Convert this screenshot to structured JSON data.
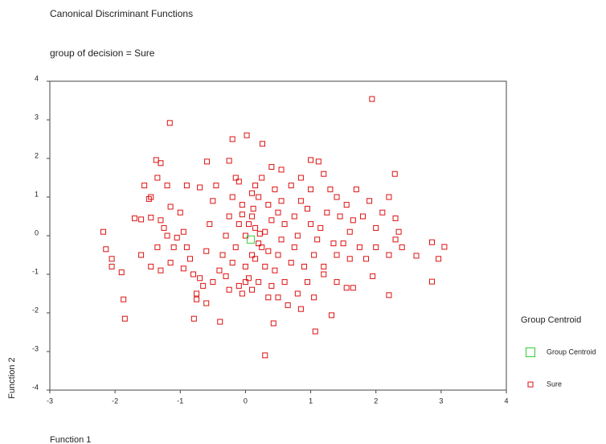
{
  "chart_data": {
    "type": "scatter",
    "title": "Canonical Discriminant Functions",
    "subtitle": "group of decision = Sure",
    "x_label": "Function 1",
    "y_label": "Function 2",
    "legend_title": "Group Centroid",
    "xlim": [
      -3,
      4
    ],
    "ylim": [
      -4,
      4
    ],
    "xticks": [
      -3,
      -2,
      -1,
      0,
      1,
      2,
      3,
      4
    ],
    "yticks": [
      -4,
      -3,
      -2,
      -1,
      0,
      1,
      2,
      3,
      4
    ],
    "grid": false,
    "series": [
      {
        "name": "Group Centroid",
        "color": "#33cc33",
        "x": [
          0.08
        ],
        "y": [
          -0.1
        ]
      },
      {
        "name": "Sure",
        "color": "#dd1111",
        "x": [
          1.94,
          -1.16,
          0.02,
          0.26,
          -0.2,
          -0.25,
          -0.59,
          -1.37,
          -1.3,
          2.29,
          1.0,
          0.55,
          1.12,
          0.4,
          -2.18,
          -2.14,
          -2.05,
          -2.05,
          -1.9,
          -1.87,
          -1.85,
          3.05,
          2.96,
          2.86,
          2.62,
          2.86,
          2.2,
          0.3,
          1.07,
          -0.39,
          0.43,
          -0.79,
          1.32,
          -1.7,
          -1.6,
          -1.45,
          -1.48,
          -1.45,
          -1.55,
          -1.35,
          -1.2,
          -1.15,
          -1.3,
          -1.25,
          -1.35,
          -1.6,
          -1.45,
          -1.3,
          -1.15,
          -1.1,
          -1.0,
          -0.95,
          -0.9,
          -0.85,
          -0.8,
          -0.75,
          -0.7,
          -0.65,
          -0.6,
          -0.55,
          -0.5,
          -0.45,
          -0.7,
          -0.9,
          -0.6,
          -0.75,
          -0.5,
          -0.4,
          -0.35,
          -0.3,
          -0.25,
          -0.2,
          -0.15,
          -0.1,
          -0.05,
          -0.1,
          -0.15,
          -0.2,
          -0.1,
          -0.3,
          -1.05,
          -1.2,
          -0.95,
          0.0,
          0.05,
          0.1,
          0.15,
          0.2,
          0.1,
          0.0,
          0.05,
          -0.05,
          0.1,
          0.2,
          0.3,
          0.35,
          0.3,
          0.4,
          0.35,
          0.2,
          0.15,
          0.1,
          0.25,
          0.45,
          0.55,
          0.5,
          0.6,
          0.55,
          0.5,
          0.45,
          0.4,
          0.35,
          0.5,
          0.6,
          0.7,
          0.75,
          0.8,
          0.75,
          0.85,
          0.7,
          0.85,
          1.0,
          0.95,
          1.0,
          1.1,
          1.05,
          0.9,
          0.8,
          0.95,
          0.65,
          0.85,
          1.2,
          1.15,
          1.25,
          1.3,
          1.2,
          1.4,
          1.45,
          1.35,
          1.4,
          1.5,
          1.6,
          1.65,
          1.55,
          1.7,
          1.8,
          1.9,
          1.75,
          1.6,
          1.65,
          1.55,
          1.85,
          2.0,
          2.0,
          2.1,
          2.2,
          2.3,
          2.3,
          2.2,
          2.4,
          2.35,
          1.95,
          1.2,
          1.05,
          1.4,
          -0.25,
          0.0,
          0.25,
          0.15,
          -0.05,
          0.12,
          0.22
        ],
        "y": [
          3.54,
          2.92,
          2.6,
          2.38,
          2.5,
          1.94,
          1.92,
          1.96,
          1.88,
          1.6,
          1.96,
          1.71,
          1.92,
          1.78,
          0.1,
          -0.35,
          -0.6,
          -0.8,
          -0.95,
          -1.65,
          -2.15,
          -0.29,
          -0.6,
          -0.17,
          -0.52,
          -1.19,
          -1.54,
          -3.1,
          -2.48,
          -2.23,
          -2.27,
          -2.15,
          -2.06,
          0.45,
          0.42,
          0.47,
          0.95,
          1.0,
          1.3,
          1.5,
          1.3,
          0.75,
          0.4,
          0.2,
          -0.3,
          -0.5,
          -0.8,
          -0.9,
          -0.7,
          -0.3,
          0.6,
          0.1,
          -0.3,
          -0.6,
          -1.0,
          -1.5,
          -1.1,
          -1.3,
          -0.4,
          0.3,
          0.9,
          1.3,
          1.25,
          1.3,
          -1.75,
          -1.65,
          -1.2,
          -0.9,
          -0.5,
          0.0,
          0.5,
          1.0,
          1.5,
          1.4,
          0.8,
          0.3,
          -0.3,
          -0.7,
          -1.3,
          -1.05,
          -0.05,
          0.0,
          -0.85,
          0.0,
          0.3,
          0.5,
          0.2,
          -0.2,
          -0.5,
          -0.8,
          -1.1,
          -1.5,
          -1.4,
          -1.2,
          -0.8,
          -0.4,
          0.1,
          0.4,
          0.8,
          1.0,
          1.3,
          1.1,
          1.5,
          1.2,
          0.9,
          0.6,
          0.3,
          -0.1,
          -0.5,
          -0.9,
          -1.3,
          -1.6,
          -1.6,
          -1.2,
          -0.7,
          -0.3,
          0.0,
          0.5,
          0.9,
          1.3,
          1.5,
          1.2,
          0.7,
          0.3,
          -0.1,
          -0.5,
          -0.8,
          -1.5,
          -1.2,
          -1.8,
          -1.9,
          -0.8,
          0.2,
          0.6,
          1.2,
          1.6,
          1.0,
          0.5,
          -0.2,
          -0.5,
          -0.2,
          0.1,
          0.4,
          0.8,
          1.2,
          0.5,
          0.9,
          -0.3,
          -0.6,
          -1.35,
          -1.35,
          -0.6,
          -0.3,
          0.2,
          0.6,
          1.0,
          0.45,
          -0.1,
          -0.5,
          -0.3,
          0.1,
          -1.05,
          -1.0,
          -1.6,
          -1.2,
          -1.4,
          -1.2,
          -0.3,
          -0.6,
          0.55,
          0.7,
          0.05
        ]
      }
    ]
  }
}
